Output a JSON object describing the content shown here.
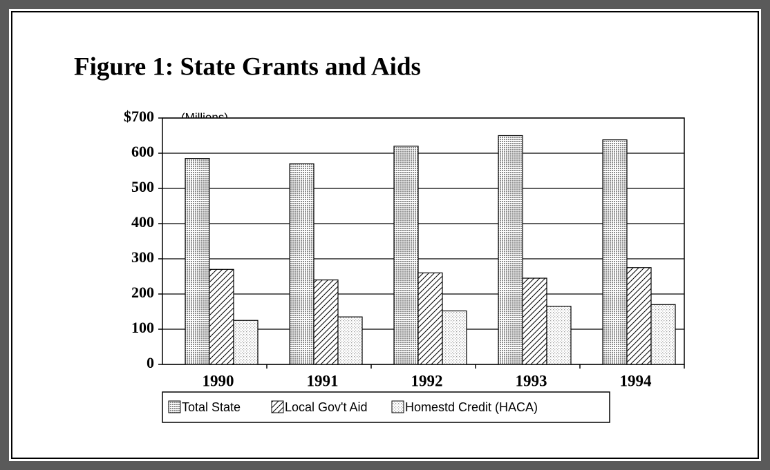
{
  "chart_data": {
    "type": "bar",
    "title": "Figure 1:  State Grants and Aids",
    "y_unit_label": "(Millions)",
    "categories": [
      "1990",
      "1991",
      "1992",
      "1993",
      "1994"
    ],
    "series": [
      {
        "name": "Total State",
        "color": "#9a9a9a",
        "pattern": "dense-dots",
        "values": [
          585,
          570,
          620,
          650,
          638
        ]
      },
      {
        "name": "Local Gov't Aid",
        "color": "#000000",
        "pattern": "hatch",
        "values": [
          270,
          240,
          260,
          245,
          275
        ]
      },
      {
        "name": "Homestd Credit (HACA)",
        "color": "#bdbdbd",
        "pattern": "sparse-dots",
        "values": [
          125,
          135,
          152,
          165,
          170
        ]
      }
    ],
    "ylim": [
      0,
      700
    ],
    "yticks": [
      0,
      100,
      200,
      300,
      400,
      500,
      600,
      {
        "value": 700,
        "label": "$700"
      }
    ],
    "grid": true,
    "legend": "bottom"
  }
}
